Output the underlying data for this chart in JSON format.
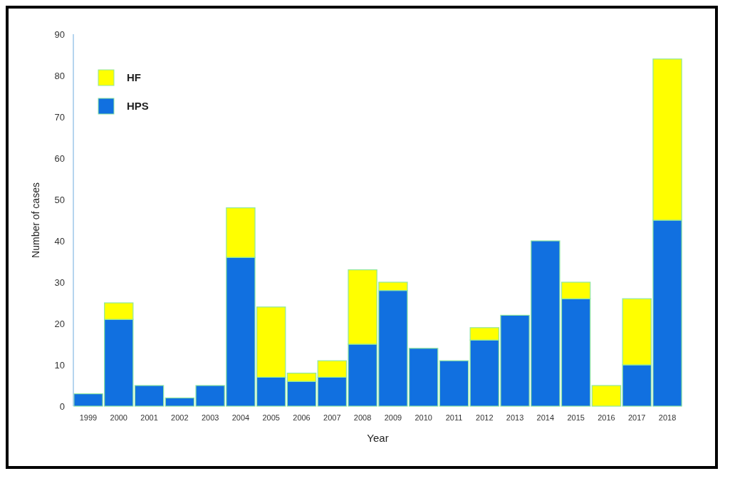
{
  "chart_data": {
    "type": "bar",
    "stacked": true,
    "xlabel": "Year",
    "ylabel": "Number of cases",
    "categories": [
      "1999",
      "2000",
      "2001",
      "2002",
      "2003",
      "2004",
      "2005",
      "2006",
      "2007",
      "2008",
      "2009",
      "2010",
      "2011",
      "2012",
      "2013",
      "2014",
      "2015",
      "2016",
      "2017",
      "2018"
    ],
    "series": [
      {
        "name": "HPS",
        "color": "#1170e0",
        "values": [
          3,
          21,
          5,
          2,
          5,
          36,
          7,
          6,
          7,
          15,
          28,
          14,
          11,
          16,
          22,
          40,
          26,
          0,
          10,
          45
        ]
      },
      {
        "name": "HF",
        "color": "#ffff00",
        "values": [
          0,
          4,
          0,
          0,
          0,
          12,
          17,
          2,
          4,
          18,
          2,
          0,
          0,
          3,
          0,
          0,
          4,
          5,
          16,
          39
        ]
      }
    ],
    "ylim": [
      0,
      90
    ],
    "yticks": [
      0,
      10,
      20,
      30,
      40,
      50,
      60,
      70,
      80,
      90
    ],
    "grid": false,
    "legend": "top left"
  }
}
